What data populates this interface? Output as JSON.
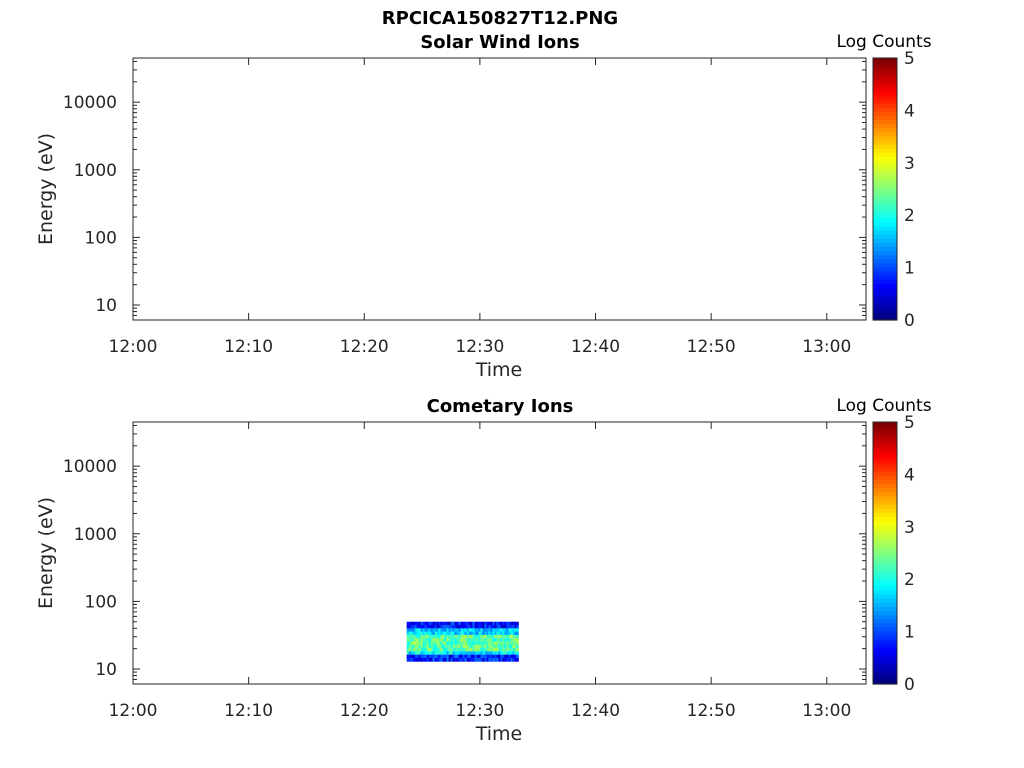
{
  "figure_title": "RPCICA150827T12.PNG",
  "chart_data": [
    {
      "type": "heatmap",
      "title": "Solar Wind Ions",
      "xlabel": "Time",
      "ylabel": "Energy (eV)",
      "x_ticks": [
        "12:00",
        "12:10",
        "12:20",
        "12:30",
        "12:40",
        "12:50",
        "13:00"
      ],
      "y_ticks": [
        "10",
        "100",
        "1000",
        "10000"
      ],
      "y_scale": "log",
      "ylim": [
        6,
        45000
      ],
      "colorbar": {
        "label": "Log Counts",
        "ticks": [
          "0",
          "1",
          "2",
          "3",
          "4",
          "5"
        ],
        "range": [
          0,
          5
        ],
        "colormap": "jet"
      },
      "data": []
    },
    {
      "type": "heatmap",
      "title": "Cometary Ions",
      "xlabel": "Time",
      "ylabel": "Energy (eV)",
      "x_ticks": [
        "12:00",
        "12:10",
        "12:20",
        "12:30",
        "12:40",
        "12:50",
        "13:00"
      ],
      "y_ticks": [
        "10",
        "100",
        "1000",
        "10000"
      ],
      "y_scale": "log",
      "ylim": [
        6,
        45000
      ],
      "colorbar": {
        "label": "Log Counts",
        "ticks": [
          "0",
          "1",
          "2",
          "3",
          "4",
          "5"
        ],
        "range": [
          0,
          5
        ],
        "colormap": "jet"
      },
      "data": [
        {
          "time_start": "12:23:40",
          "time_end": "12:33:20",
          "energy_min": 13,
          "energy_max": 50,
          "approx_log_counts_range": [
            0.3,
            2.8
          ]
        }
      ]
    }
  ]
}
